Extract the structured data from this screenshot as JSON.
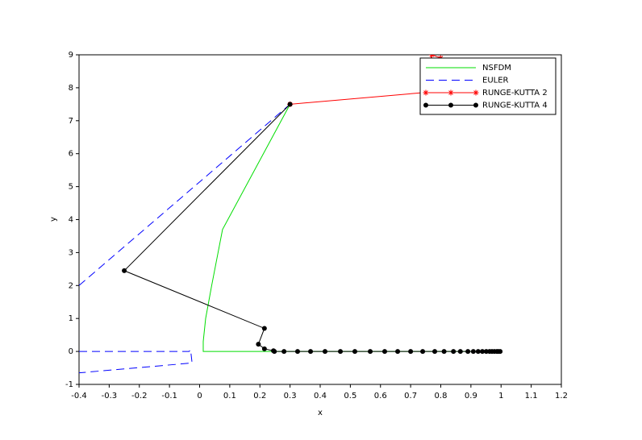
{
  "chart_data": {
    "type": "line",
    "x_label": "x",
    "y_label": "y",
    "xlim": [
      -0.4,
      1.2
    ],
    "ylim": [
      -1,
      9
    ],
    "xticks": [
      -0.4,
      -0.3,
      -0.2,
      -0.1,
      0,
      0.1,
      0.2,
      0.3,
      0.4,
      0.5,
      0.6,
      0.7,
      0.8,
      0.9,
      1,
      1.1,
      1.2
    ],
    "yticks": [
      -1,
      0,
      1,
      2,
      3,
      4,
      5,
      6,
      7,
      8,
      9
    ],
    "legend": "top-right",
    "series": [
      {
        "name": "NSFDM",
        "color": "#00dd00",
        "dash": "solid",
        "marker": "none",
        "x": [
          0.3,
          0.076,
          0.04,
          0.02,
          0.012,
          0.012,
          0.2,
          1
        ],
        "values": [
          7.5,
          3.7,
          2,
          1,
          0.3,
          0,
          0,
          0
        ]
      },
      {
        "name": "EULER",
        "color": "#0000ff",
        "dash": "dashed",
        "marker": "none",
        "x": [
          -0.4,
          0.3,
          null,
          -0.4,
          -0.035,
          -0.03,
          -0.025,
          -0.4
        ],
        "values": [
          2,
          7.5,
          null,
          0,
          0,
          0.05,
          -0.35,
          -0.65
        ]
      },
      {
        "name": "RUNGE-KUTTA 2",
        "color": "#ff0000",
        "dash": "solid",
        "marker": "star",
        "x": [
          0.3,
          0.74,
          0.77,
          0.8
        ],
        "values": [
          7.5,
          7.85,
          9.0,
          8.9
        ]
      },
      {
        "name": "RUNGE-KUTTA 4",
        "color": "#000000",
        "dash": "solid",
        "marker": "circle",
        "x": [
          0.3,
          -0.25,
          0.215,
          0.195,
          0.215,
          0.245,
          0.248,
          0.28,
          0.325,
          0.368,
          0.416,
          0.467,
          0.515,
          0.566,
          0.614,
          0.657,
          0.7,
          0.74,
          0.78,
          0.811,
          0.842,
          0.865,
          0.89,
          0.908,
          0.924,
          0.938,
          0.951,
          0.962,
          0.97,
          0.978,
          0.986,
          0.991,
          0.997
        ],
        "values": [
          7.5,
          2.45,
          0.7,
          0.22,
          0.08,
          0.02,
          0,
          0,
          0,
          0,
          0,
          0,
          0,
          0,
          0,
          0,
          0,
          0,
          0,
          0,
          0,
          0,
          0,
          0,
          0,
          0,
          0,
          0,
          0,
          0,
          0,
          0,
          0
        ]
      }
    ]
  }
}
